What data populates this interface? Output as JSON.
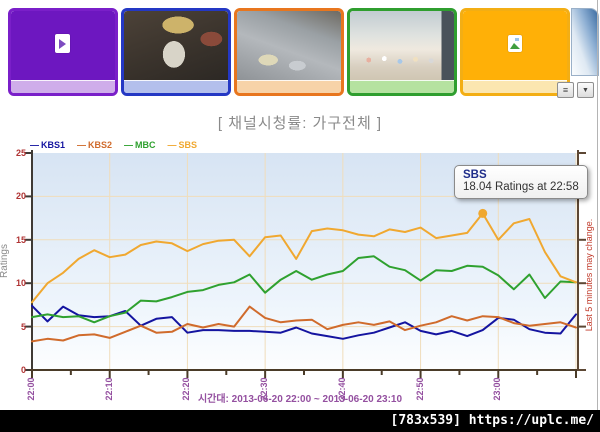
{
  "page": {
    "title": "[ 채널시청률: 가구전체 ]",
    "watermark": "[783x539] https://uplc.me/"
  },
  "toolbar": {
    "list_icon": "≡",
    "dropdown_icon": "▼"
  },
  "thumbnails": [
    {
      "name": "channel-thumb-1",
      "kind": "placeholder",
      "border": "#7a1fc9",
      "fill": "#6d17c0",
      "footer": "#cfadea",
      "icon": "media-file-icon"
    },
    {
      "name": "channel-thumb-2",
      "kind": "video",
      "border": "#2438c4",
      "footer": "#b3bfec",
      "scene": "person-with-straw-hat"
    },
    {
      "name": "channel-thumb-3",
      "kind": "video",
      "border": "#e8761e",
      "footer": "#f7d3a8",
      "scene": "rainy-street-umbrellas"
    },
    {
      "name": "channel-thumb-4",
      "kind": "video",
      "border": "#2f9e2f",
      "footer": "#b5e2a0",
      "scene": "stage-with-people"
    },
    {
      "name": "channel-thumb-5",
      "kind": "placeholder",
      "border": "#f3ae14",
      "fill": "#ffb007",
      "footer": "#fbe6b0",
      "icon": "image-file-icon"
    }
  ],
  "chart_data": {
    "type": "line",
    "title": "[ 채널시청률: 가구전체 ]",
    "ylabel": "Ratings",
    "right_note": "Last 5 minutes may change.",
    "caption": "시간대: 2013-06-20 22:00 ~ 2013-06-20 23:10",
    "ylim": [
      0,
      25
    ],
    "yticks": [
      0,
      5,
      10,
      15,
      20,
      25
    ],
    "xtick_labels": [
      "22:00",
      "22:10",
      "22:20",
      "22:30",
      "22:40",
      "22:50",
      "23:00"
    ],
    "x_minutes_span": 70,
    "x": [
      "22:00",
      "22:02",
      "22:04",
      "22:06",
      "22:08",
      "22:10",
      "22:12",
      "22:14",
      "22:16",
      "22:18",
      "22:20",
      "22:22",
      "22:24",
      "22:26",
      "22:28",
      "22:30",
      "22:32",
      "22:34",
      "22:36",
      "22:38",
      "22:40",
      "22:42",
      "22:44",
      "22:46",
      "22:48",
      "22:50",
      "22:52",
      "22:54",
      "22:56",
      "22:58",
      "23:00",
      "23:02",
      "23:04",
      "23:06",
      "23:08",
      "23:10"
    ],
    "series": [
      {
        "name": "KBS1",
        "color": "#1414a0",
        "values": [
          7.4,
          5.6,
          7.3,
          6.3,
          6.1,
          6.2,
          6.8,
          5.1,
          5.9,
          6.1,
          4.3,
          4.6,
          4.6,
          4.5,
          4.5,
          4.4,
          4.3,
          4.9,
          4.2,
          3.9,
          3.6,
          4.0,
          4.3,
          4.9,
          5.5,
          4.5,
          4.1,
          4.5,
          3.9,
          4.6,
          6.0,
          5.8,
          4.7,
          4.3,
          4.2,
          6.4
        ]
      },
      {
        "name": "KBS2",
        "color": "#d06b2c",
        "values": [
          3.3,
          3.6,
          3.4,
          4.0,
          4.1,
          3.7,
          4.4,
          5.1,
          4.3,
          4.4,
          5.3,
          4.9,
          5.3,
          5.0,
          7.3,
          6.0,
          5.5,
          5.7,
          5.8,
          4.7,
          5.2,
          5.5,
          5.2,
          5.6,
          4.6,
          5.1,
          5.5,
          6.2,
          5.7,
          6.2,
          6.1,
          5.4,
          5.1,
          5.3,
          5.5,
          4.9
        ]
      },
      {
        "name": "MBC",
        "color": "#2fa12f",
        "values": [
          6.1,
          6.4,
          6.1,
          6.2,
          5.5,
          6.2,
          6.6,
          8.0,
          7.9,
          8.4,
          9.0,
          9.2,
          9.8,
          10.1,
          11.0,
          8.9,
          10.4,
          11.4,
          10.4,
          11.0,
          11.4,
          12.9,
          13.1,
          11.9,
          11.5,
          10.3,
          11.5,
          11.4,
          12.0,
          11.9,
          10.9,
          9.3,
          11.0,
          8.3,
          10.2,
          10.1
        ]
      },
      {
        "name": "SBS",
        "color": "#f0a830",
        "values": [
          7.8,
          10.0,
          11.2,
          12.8,
          13.8,
          13.0,
          13.3,
          14.4,
          14.8,
          14.6,
          13.7,
          14.5,
          14.9,
          15.0,
          13.1,
          15.3,
          15.5,
          12.8,
          16.0,
          16.3,
          16.1,
          15.6,
          15.4,
          16.2,
          15.9,
          16.4,
          15.2,
          15.5,
          15.8,
          18.04,
          15.0,
          16.9,
          17.4,
          13.6,
          10.8,
          10.1
        ]
      }
    ],
    "legend_position": "top-left",
    "grid": true,
    "marker": {
      "series": "SBS",
      "time": "22:58",
      "value": 18.04,
      "x_index": 29
    },
    "tooltip": {
      "title": "SBS",
      "body": "18.04 Ratings at 22:58"
    }
  }
}
